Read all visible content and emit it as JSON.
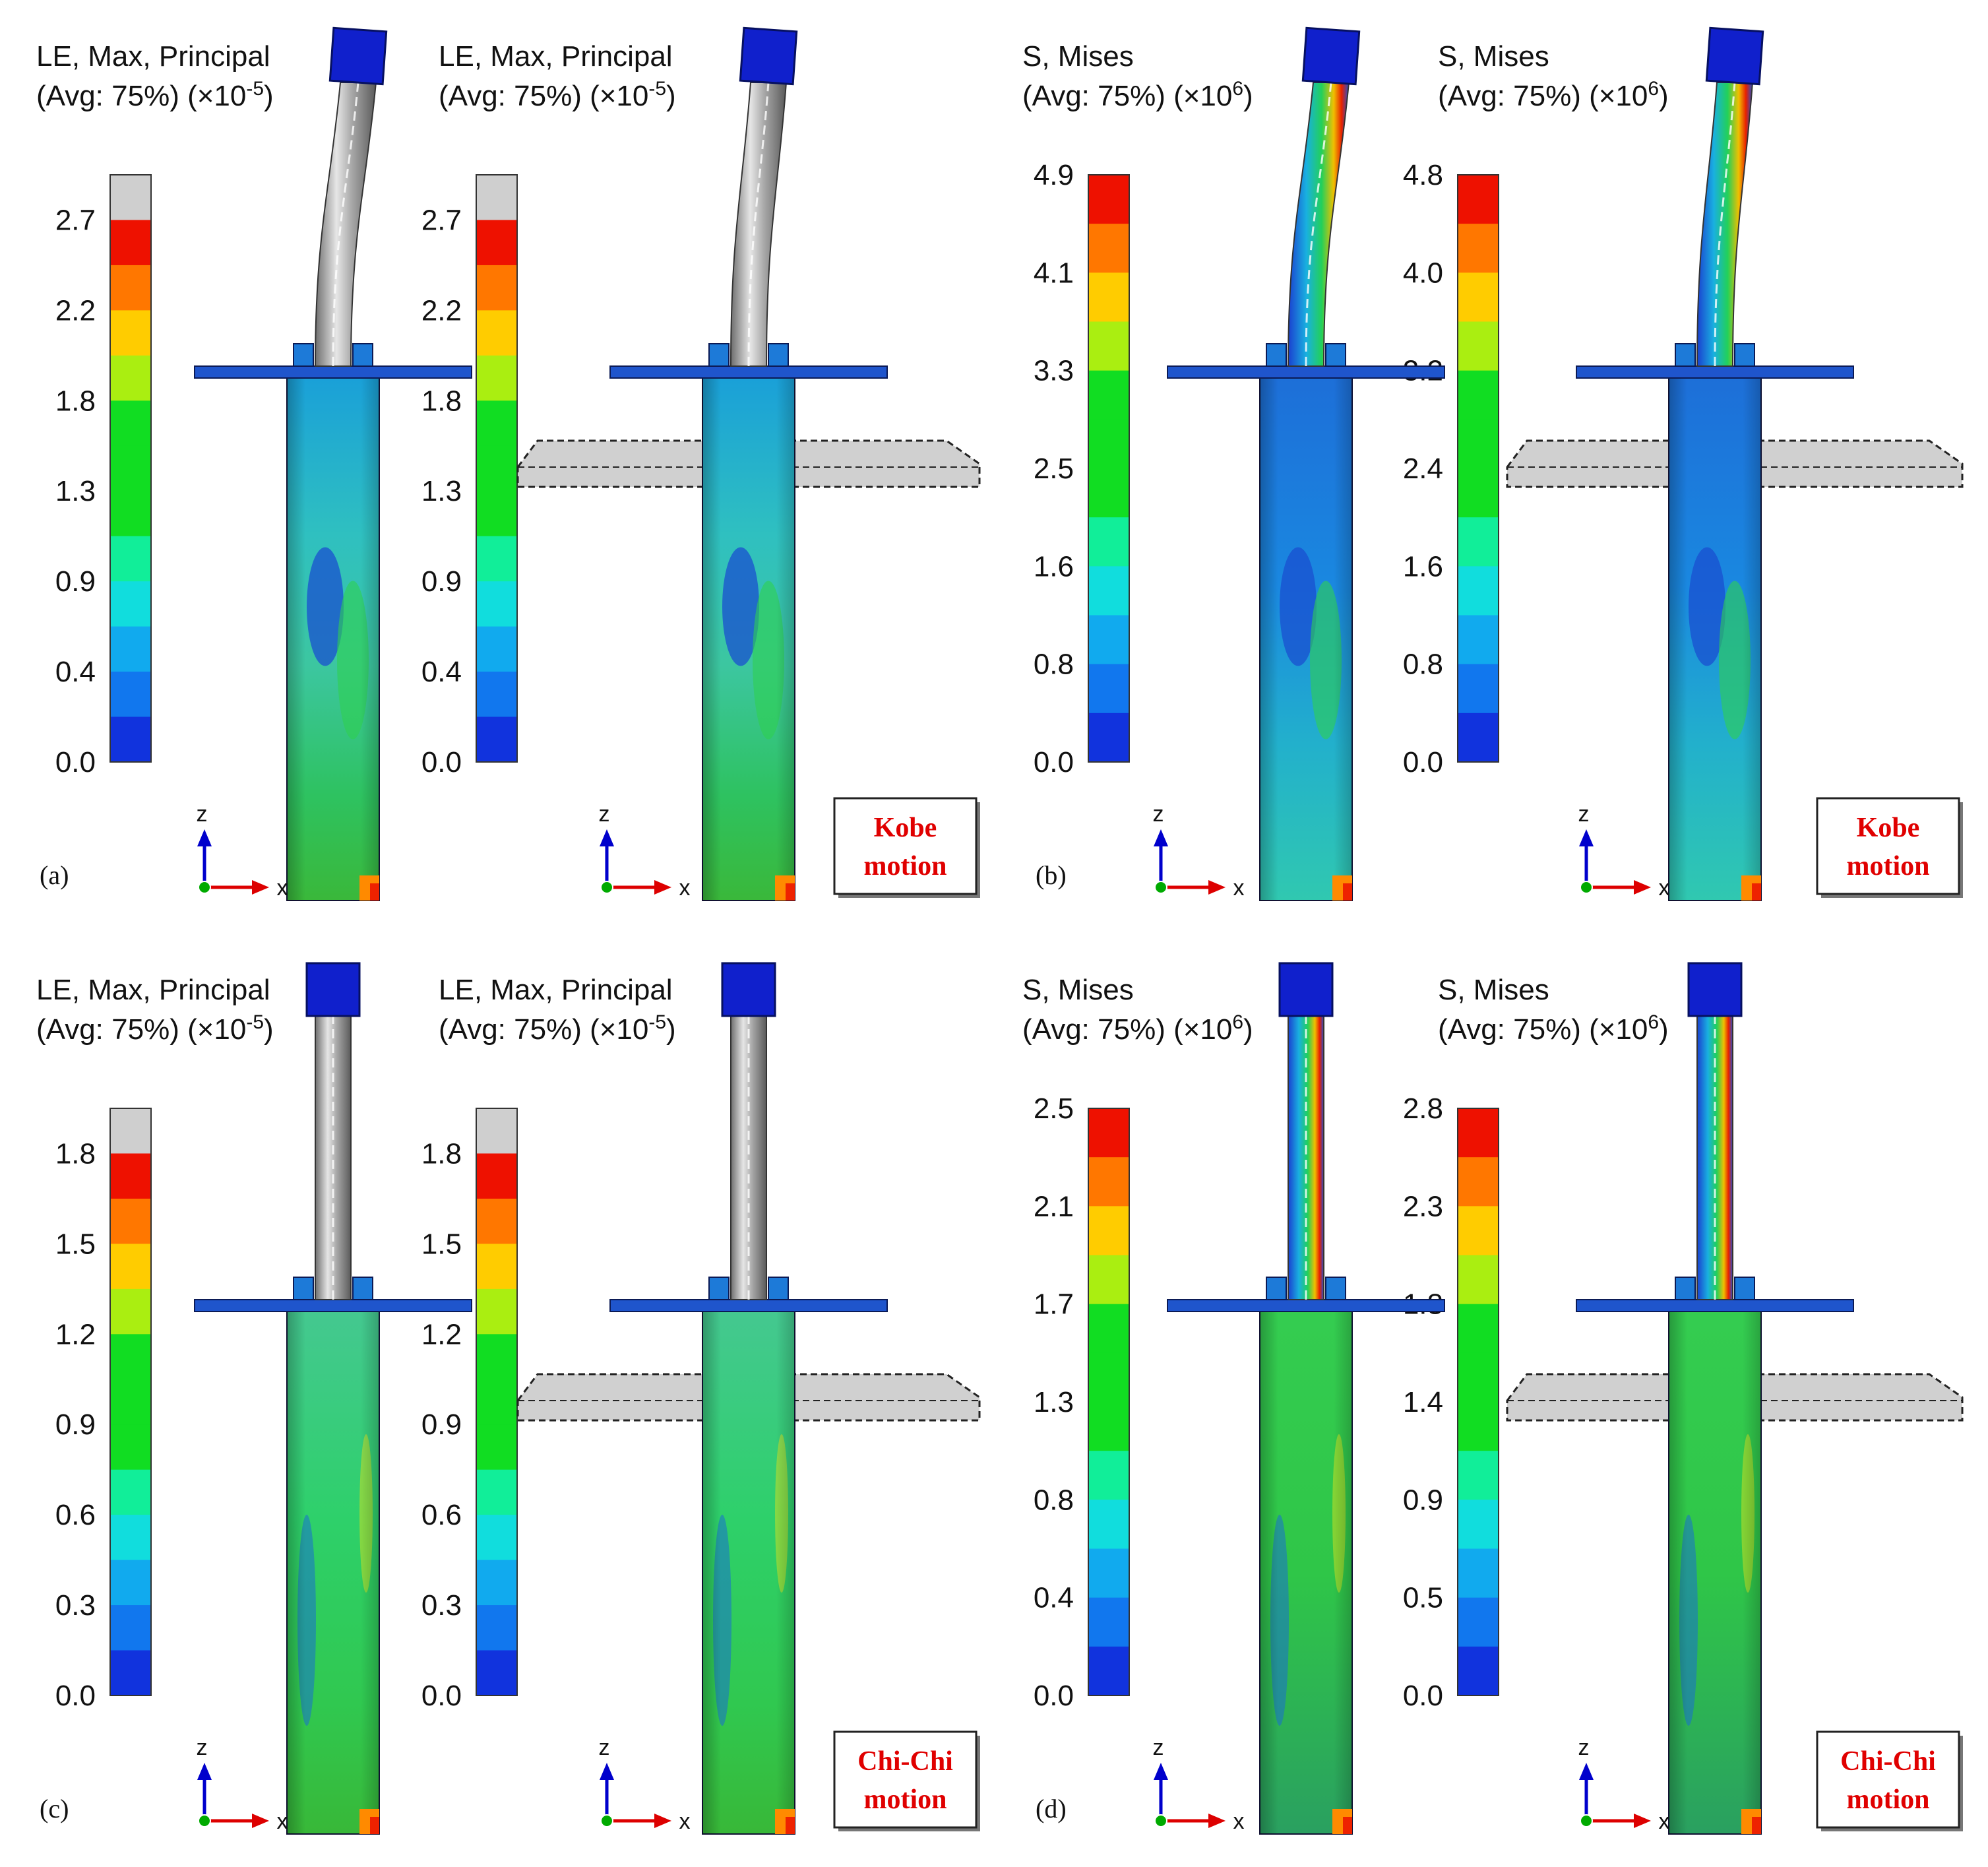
{
  "colors": {
    "bands_low_to_high": [
      "#1133dd",
      "#1177ee",
      "#11aaee",
      "#11dddd",
      "#11ee99",
      "#11dd22",
      "#11dd22",
      "#11dd22",
      "#aaee11",
      "#ffcc00",
      "#ff7700",
      "#ee1100"
    ],
    "gray_band": "#cfcfcf",
    "box_text": "#e00000",
    "arrow_x": "#dd0000",
    "arrow_z": "#0000cc",
    "origin": "#00aa00",
    "shaft": "#9a9a9a",
    "cap": "#1020cc",
    "slab": "#d0d0d0"
  },
  "panels": [
    {
      "id": "a",
      "panel_label": "(a)",
      "left": {
        "title1": "LE, Max, Principal",
        "title2_prefix": "(Avg: 75%) (×10",
        "title2_exp": "-5",
        "title2_suffix": ")",
        "ticks": [
          "2.7",
          "2.2",
          "1.8",
          "1.3",
          "0.9",
          "0.4",
          "0.0"
        ],
        "has_gray": true
      },
      "right": {
        "title1": "LE, Max, Principal",
        "title2_prefix": "(Avg: 75%) (×10",
        "title2_exp": "-5",
        "title2_suffix": ")",
        "ticks": [
          "2.7",
          "2.2",
          "1.8",
          "1.3",
          "0.9",
          "0.4",
          "0.0"
        ],
        "has_gray": true
      },
      "axis_z": "z",
      "axis_x": "x",
      "box_line1": "Kobe",
      "box_line2": "motion"
    },
    {
      "id": "b",
      "panel_label": "(b)",
      "left": {
        "title1": "S, Mises",
        "title2_prefix": "(Avg: 75%) (×10",
        "title2_exp": "6",
        "title2_suffix": ")",
        "ticks": [
          "4.9",
          "4.1",
          "3.3",
          "2.5",
          "1.6",
          "0.8",
          "0.0"
        ],
        "has_gray": false
      },
      "right": {
        "title1": "S, Mises",
        "title2_prefix": "(Avg: 75%) (×10",
        "title2_exp": "6",
        "title2_suffix": ")",
        "ticks": [
          "4.8",
          "4.0",
          "3.2",
          "2.4",
          "1.6",
          "0.8",
          "0.0"
        ],
        "has_gray": false
      },
      "axis_z": "z",
      "axis_x": "x",
      "box_line1": "Kobe",
      "box_line2": "motion"
    },
    {
      "id": "c",
      "panel_label": "(c)",
      "left": {
        "title1": "LE, Max, Principal",
        "title2_prefix": "(Avg: 75%) (×10",
        "title2_exp": "-5",
        "title2_suffix": ")",
        "ticks": [
          "1.8",
          "1.5",
          "1.2",
          "0.9",
          "0.6",
          "0.3",
          "0.0"
        ],
        "has_gray": true
      },
      "right": {
        "title1": "LE, Max, Principal",
        "title2_prefix": "(Avg: 75%) (×10",
        "title2_exp": "-5",
        "title2_suffix": ")",
        "ticks": [
          "1.8",
          "1.5",
          "1.2",
          "0.9",
          "0.6",
          "0.3",
          "0.0"
        ],
        "has_gray": true
      },
      "axis_z": "z",
      "axis_x": "x",
      "box_line1": "Chi-Chi",
      "box_line2": "motion"
    },
    {
      "id": "d",
      "panel_label": "(d)",
      "left": {
        "title1": "S, Mises",
        "title2_prefix": "(Avg: 75%) (×10",
        "title2_exp": "6",
        "title2_suffix": ")",
        "ticks": [
          "2.5",
          "2.1",
          "1.7",
          "1.3",
          "0.8",
          "0.4",
          "0.0"
        ],
        "has_gray": false
      },
      "right": {
        "title1": "S, Mises",
        "title2_prefix": "(Avg: 75%) (×10",
        "title2_exp": "6",
        "title2_suffix": ")",
        "ticks": [
          "2.8",
          "2.3",
          "1.8",
          "1.4",
          "0.9",
          "0.5",
          "0.0"
        ],
        "has_gray": false
      },
      "axis_z": "z",
      "axis_x": "x",
      "box_line1": "Chi-Chi",
      "box_line2": "motion"
    }
  ]
}
